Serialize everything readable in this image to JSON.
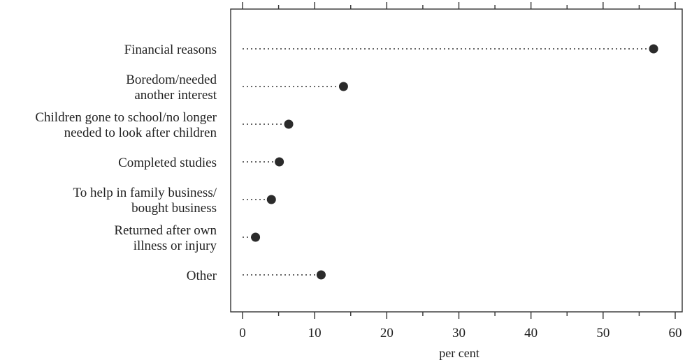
{
  "chart_data": {
    "type": "scatter",
    "subtype": "dot-plot",
    "categories": [
      [
        "Financial reasons"
      ],
      [
        "Boredom/needed",
        "another interest"
      ],
      [
        "Children gone to school/no longer",
        "needed to look after children"
      ],
      [
        "Completed studies"
      ],
      [
        "To help in family business/",
        "bought business"
      ],
      [
        "Returned after own",
        "illness or injury"
      ],
      [
        "Other"
      ]
    ],
    "values": [
      57,
      14,
      6.4,
      5.1,
      4,
      1.8,
      10.9
    ],
    "xlabel": "per cent",
    "ylabel": "",
    "xlim": [
      -1.5,
      61.5
    ],
    "xticks": [
      0,
      10,
      20,
      30,
      40,
      50,
      60
    ],
    "grid": false,
    "legend": "none",
    "colors": {
      "marker": "#2b2b2b",
      "leader": "#333333",
      "frame": "#333333",
      "text": "#222222"
    }
  }
}
